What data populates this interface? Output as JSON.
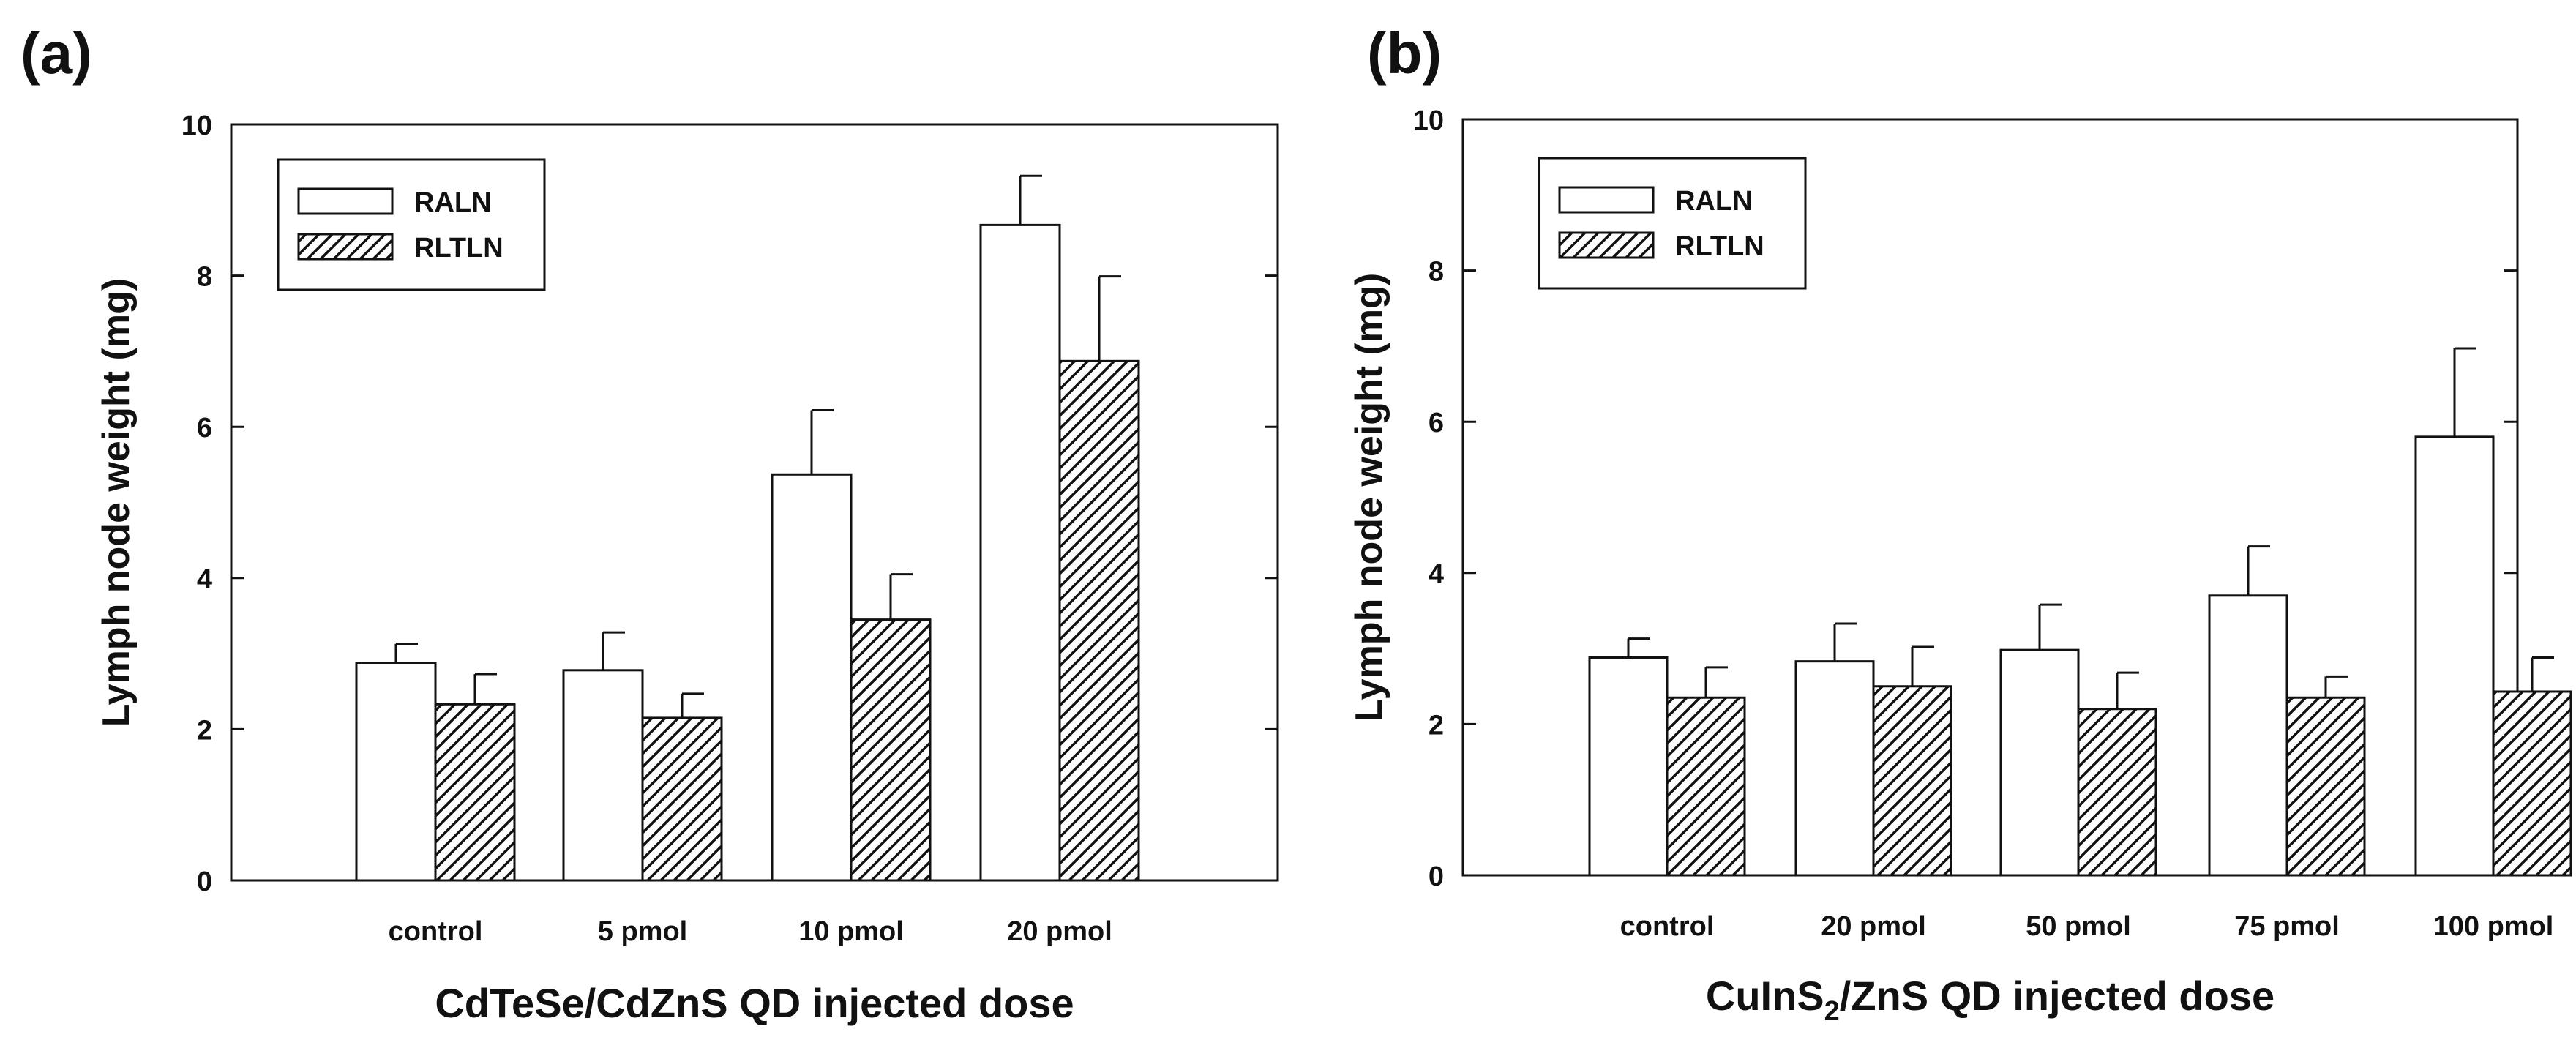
{
  "colors": {
    "ink": "#111111",
    "fill_white": "#ffffff",
    "hatch": "#111111"
  },
  "chart_data": [
    {
      "type": "bar",
      "panel_label": "(a)",
      "title": "",
      "xlabel": "CdTeSe/CdZnS QD injected dose",
      "xlabel_sub": "",
      "xlabel_tail": "",
      "ylabel": "Lymph node weight (mg)",
      "ylim": [
        0,
        10
      ],
      "yticks": [
        0,
        2,
        4,
        6,
        8,
        10
      ],
      "legend_position": "top-left",
      "categories": [
        "control",
        "5 pmol",
        "10 pmol",
        "20 pmol"
      ],
      "series": [
        {
          "name": "RALN",
          "pattern": "open",
          "values": [
            2.88,
            2.78,
            5.37,
            8.67
          ],
          "errors": [
            0.25,
            0.5,
            0.85,
            0.65
          ]
        },
        {
          "name": "RLTLN",
          "pattern": "hatched",
          "values": [
            2.33,
            2.15,
            3.45,
            6.87
          ],
          "errors": [
            0.4,
            0.32,
            0.6,
            1.12
          ]
        }
      ]
    },
    {
      "type": "bar",
      "panel_label": "(b)",
      "title": "",
      "xlabel": "CuInS",
      "xlabel_sub": "2",
      "xlabel_tail": "/ZnS QD injected dose",
      "ylabel": "Lymph node weight (mg)",
      "ylim": [
        0,
        10
      ],
      "yticks": [
        0,
        2,
        4,
        6,
        8,
        10
      ],
      "legend_position": "top-left",
      "categories": [
        "control",
        "20 pmol",
        "50 pmol",
        "75 pmol",
        "100 pmol"
      ],
      "series": [
        {
          "name": "RALN",
          "pattern": "open",
          "values": [
            2.88,
            2.83,
            2.98,
            3.7,
            5.8
          ],
          "errors": [
            0.25,
            0.5,
            0.6,
            0.65,
            1.17
          ]
        },
        {
          "name": "RLTLN",
          "pattern": "hatched",
          "values": [
            2.35,
            2.5,
            2.2,
            2.35,
            2.43
          ],
          "errors": [
            0.4,
            0.52,
            0.48,
            0.28,
            0.45
          ]
        }
      ]
    }
  ]
}
